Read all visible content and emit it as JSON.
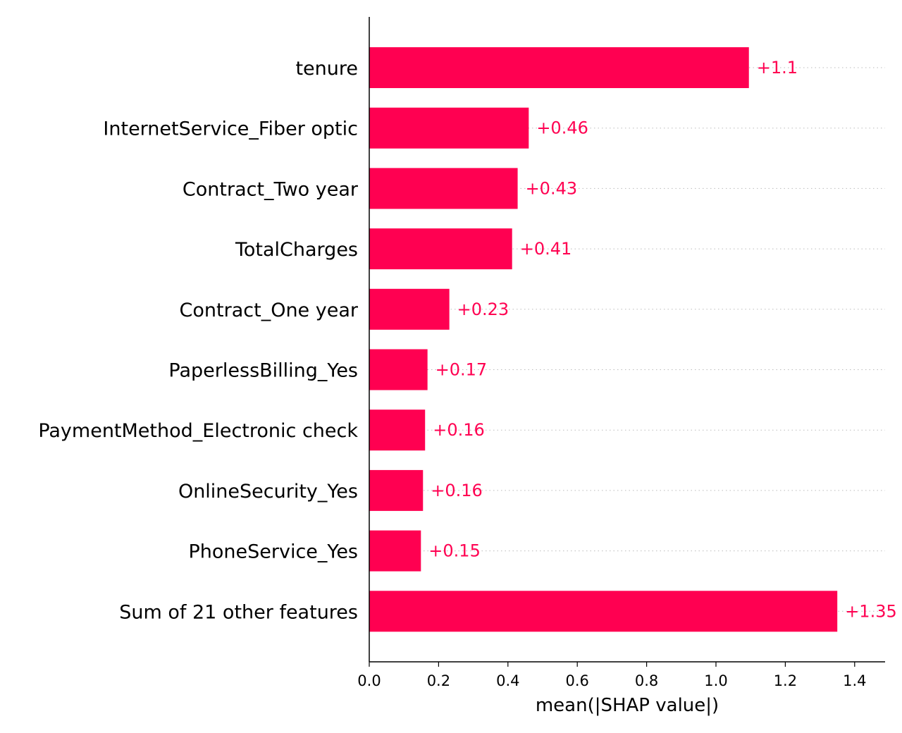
{
  "chart_data": {
    "type": "bar",
    "orientation": "horizontal",
    "categories": [
      "tenure",
      "InternetService_Fiber optic",
      "Contract_Two year",
      "TotalCharges",
      "Contract_One year",
      "PaperlessBilling_Yes",
      "PaymentMethod_Electronic check",
      "OnlineSecurity_Yes",
      "PhoneService_Yes",
      "Sum of 21 other features"
    ],
    "values": [
      1.095,
      0.46,
      0.428,
      0.412,
      0.231,
      0.168,
      0.161,
      0.155,
      0.149,
      1.35
    ],
    "value_labels": [
      "+1.1",
      "+0.46",
      "+0.43",
      "+0.41",
      "+0.23",
      "+0.17",
      "+0.16",
      "+0.16",
      "+0.15",
      "+1.35"
    ],
    "xlabel": "mean(|SHAP value|)",
    "ylabel": "",
    "title": "",
    "xlim": [
      0,
      1.48
    ],
    "xticks": [
      0.0,
      0.2,
      0.4,
      0.6,
      0.8,
      1.0,
      1.2,
      1.4
    ],
    "xtick_labels": [
      "0.0",
      "0.2",
      "0.4",
      "0.6",
      "0.8",
      "1.0",
      "1.2",
      "1.4"
    ],
    "bar_color": "#ff0051",
    "label_color": "#ff0051",
    "grid": "dotted guide lines per bar",
    "legend": "none"
  }
}
